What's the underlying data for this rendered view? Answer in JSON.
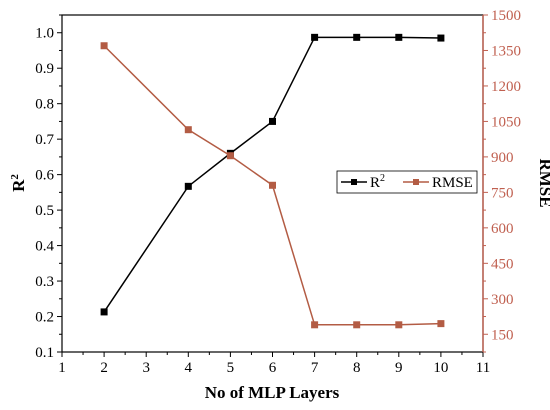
{
  "chart_data": {
    "type": "line",
    "xlabel": "No of MLP Layers",
    "ylabel_left": "R",
    "ylabel_left_sup": "2",
    "ylabel_right": "RMSE",
    "xlim": [
      1,
      11
    ],
    "ylim_left": [
      0.1,
      1.05
    ],
    "ylim_right": [
      75,
      1500
    ],
    "x_ticks": [
      "1",
      "2",
      "3",
      "4",
      "5",
      "6",
      "7",
      "8",
      "9",
      "10",
      "11"
    ],
    "y_left_ticks": [
      "0.1",
      "0.2",
      "0.3",
      "0.4",
      "0.5",
      "0.6",
      "0.7",
      "0.8",
      "0.9",
      "1.0"
    ],
    "y_right_ticks": [
      "150",
      "300",
      "450",
      "600",
      "750",
      "900",
      "1050",
      "1200",
      "1350",
      "1500"
    ],
    "grid": false,
    "legend_position": "right-center",
    "x": [
      2,
      4,
      5,
      6,
      7,
      8,
      9,
      10
    ],
    "series": [
      {
        "name": "R",
        "name_sup": "2",
        "axis": "left",
        "color": "#000000",
        "marker": "square",
        "values": [
          0.213,
          0.567,
          0.66,
          0.75,
          0.987,
          0.987,
          0.987,
          0.985
        ]
      },
      {
        "name": "RMSE",
        "axis": "right",
        "color": "#b35c44",
        "marker": "square",
        "values": [
          1370,
          1015,
          905,
          780,
          190,
          190,
          190,
          195
        ]
      }
    ],
    "colors": {
      "right_axis": "#c06050",
      "left_axis": "#000000"
    }
  }
}
